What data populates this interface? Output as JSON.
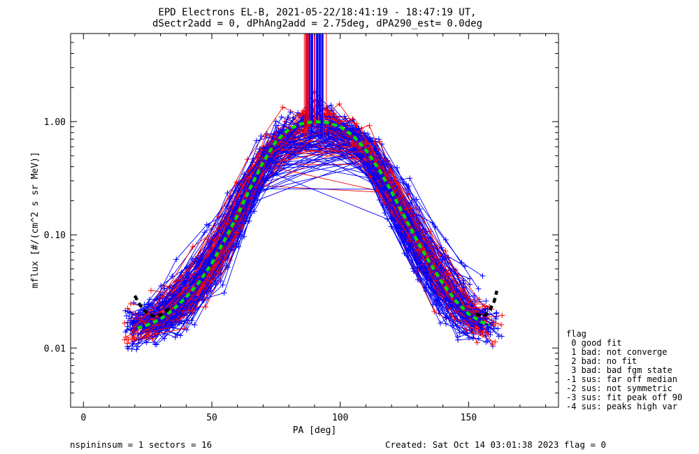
{
  "title_lines": [
    "EPD Electrons EL-B, 2021-05-22/18:41:19 - 18:47:19 UT,",
    "dSectr2add = 0, dPhAng2add = 2.75deg, dPA290_est=   0.0deg"
  ],
  "footer": {
    "left": "nspininsum =  1  sectors = 16",
    "right": "Created: Sat Oct 14 03:01:38 2023   flag = 0"
  },
  "legend": {
    "title": "flag",
    "entries": [
      " 0 good fit",
      " 1 bad: not converge",
      " 2 bad: no fit",
      " 3 bad: bad fgm state",
      "-1 sus: far off median",
      "-2 sus: not symmetric",
      "-3 sus: fit peak off 90",
      "-4 sus: peaks high var"
    ]
  },
  "colors": {
    "series_blue": "#0000ff",
    "series_red": "#ff0000",
    "fit_green": "#00dd00",
    "fit_black": "#000000"
  },
  "chart_data": {
    "type": "line",
    "scale_y": "log",
    "xlabel": "PA [deg]",
    "ylabel": "mflux [#/(cm^2 s sr MeV)]",
    "xlim": [
      -5,
      185
    ],
    "ylim": [
      0.003,
      6.0
    ],
    "xticks": [
      0,
      50,
      100,
      150
    ],
    "yticks": [
      0.01,
      0.1,
      1.0
    ],
    "ytick_labels": [
      "0.01",
      "0.10",
      "1.00"
    ],
    "fit_curves": [
      {
        "color": "green",
        "style": "dashed",
        "x": [
          21,
          25,
          30,
          35,
          40,
          45,
          50,
          55,
          60,
          65,
          70,
          75,
          80,
          85,
          90,
          95,
          100,
          105,
          110,
          115,
          120,
          125,
          130,
          135,
          140,
          145,
          150,
          155,
          158
        ],
        "y": [
          0.015,
          0.016,
          0.018,
          0.022,
          0.028,
          0.038,
          0.056,
          0.09,
          0.15,
          0.26,
          0.44,
          0.67,
          0.86,
          0.96,
          1.0,
          0.98,
          0.9,
          0.75,
          0.56,
          0.38,
          0.24,
          0.145,
          0.088,
          0.056,
          0.037,
          0.026,
          0.02,
          0.017,
          0.016
        ]
      },
      {
        "color": "black",
        "style": "dashed",
        "x": [
          20,
          22,
          25,
          28,
          31,
          34
        ],
        "y": [
          0.029,
          0.024,
          0.02,
          0.019,
          0.02,
          0.023
        ]
      },
      {
        "color": "black",
        "style": "dashed",
        "x": [
          153,
          156,
          158,
          160,
          161
        ],
        "y": [
          0.02,
          0.019,
          0.021,
          0.026,
          0.032
        ]
      }
    ],
    "series_summary": "several hundred spin-resolved pitch-angle distributions (blue and red traces with + markers), peak near 0.9-1.0 at PA 85-95 deg, spanning 0.003 to above 6 at center"
  }
}
